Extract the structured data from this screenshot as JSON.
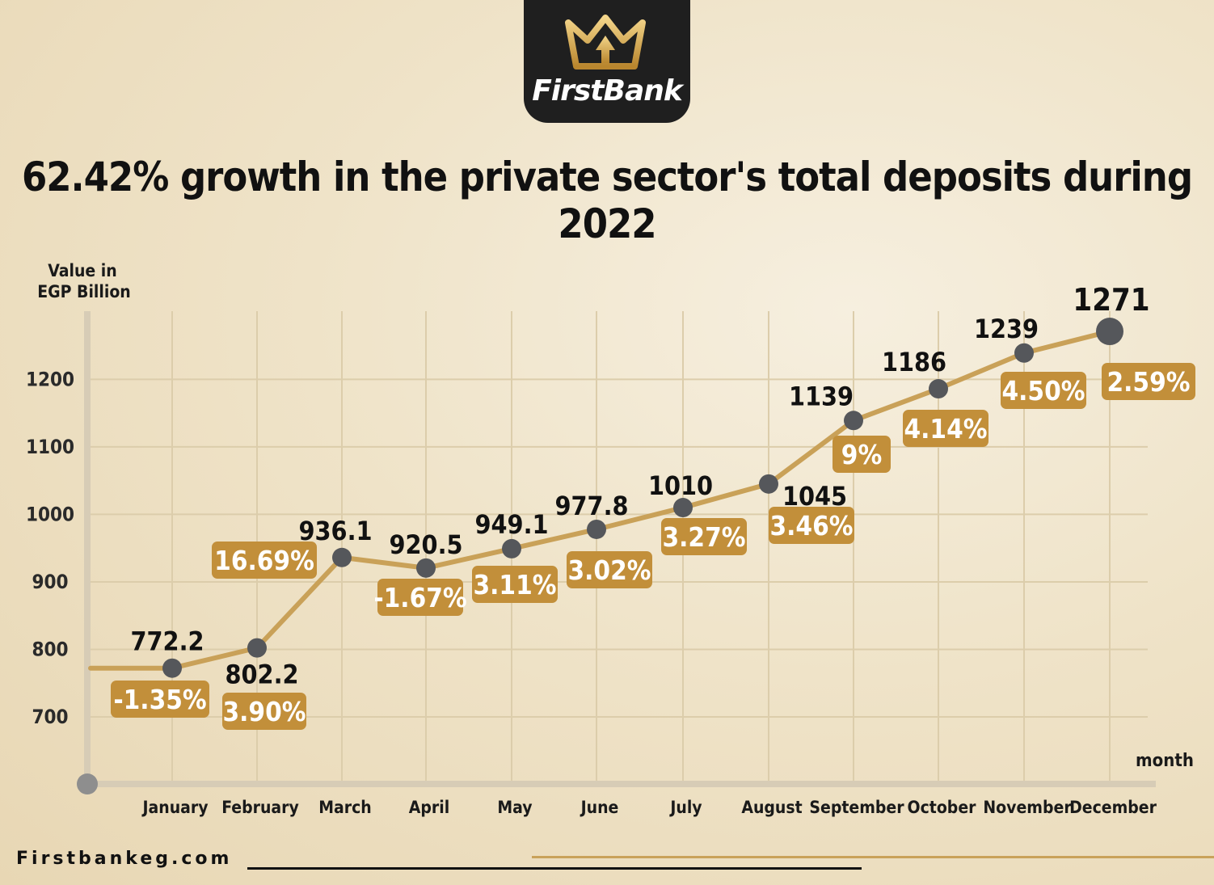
{
  "brand": {
    "name": "FirstBank",
    "website": "Firstbankeg.com",
    "logo_icon": "crown-icon"
  },
  "colors": {
    "accent_gold": "#c28f3a",
    "line_gold": "#c9a158",
    "marker_gray": "#55575b",
    "logo_bg": "#1f1f1f",
    "title_text": "#111111"
  },
  "chart_data": {
    "type": "line",
    "title": "62.42% growth in the private sector's total deposits during 2022",
    "ylabel_line1": "Value in",
    "ylabel_line2": "EGP Billion",
    "xlabel": "month",
    "yticks": [
      700,
      800,
      900,
      1000,
      1100,
      1200
    ],
    "ylim": [
      600,
      1300
    ],
    "grid": true,
    "categories": [
      "January",
      "February",
      "March",
      "April",
      "May",
      "June",
      "July",
      "August",
      "September",
      "October",
      "November",
      "December"
    ],
    "series": [
      {
        "values": [
          772.2,
          802.2,
          936.1,
          920.5,
          949.1,
          977.8,
          1010,
          1045,
          1139,
          1186,
          1239,
          1271
        ],
        "value_labels": [
          "772.2",
          "802.2",
          "936.1",
          "920.5",
          "949.1",
          "977.8",
          "1010",
          "1045",
          "1139",
          "1186",
          "1239",
          "1271"
        ],
        "growth_labels": [
          "-1.35%",
          "3.90%",
          "16.69%",
          "-1.67%",
          "3.11%",
          "3.02%",
          "3.27%",
          "3.46%",
          "9%",
          "4.14%",
          "4.50%",
          "2.59%"
        ]
      }
    ],
    "leading_value": 772.2
  }
}
